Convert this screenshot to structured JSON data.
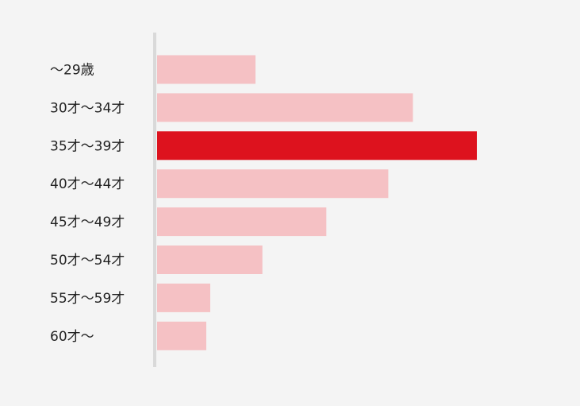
{
  "chart_data": {
    "type": "bar",
    "orientation": "horizontal",
    "categories": [
      "～29歳",
      "30才～34才",
      "35才～39才",
      "40才～44才",
      "45才～49才",
      "50才～54才",
      "55才～59才",
      "60才～"
    ],
    "values": [
      10,
      26,
      32.5,
      23.5,
      17.2,
      10.7,
      5.4,
      5.0
    ],
    "highlight_index": 2,
    "title": "",
    "xlabel": "",
    "ylabel": "",
    "grid": false,
    "legend": "none",
    "colors": {
      "bar": "#f5c1c4",
      "highlight": "#dd121e",
      "axis": "#d9d9d9",
      "background": "#f4f4f4"
    }
  }
}
